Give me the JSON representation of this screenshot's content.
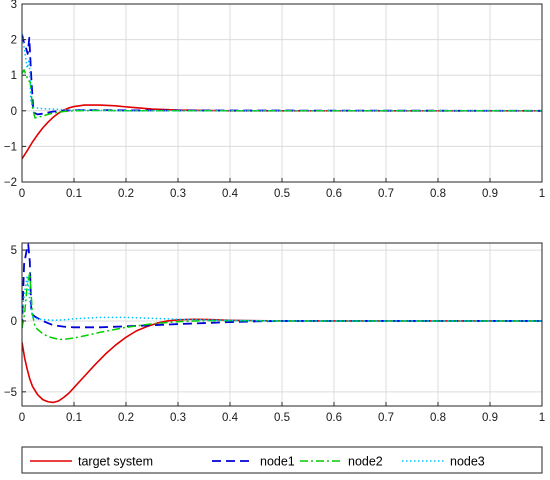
{
  "chart_data": [
    {
      "type": "line",
      "xlim": [
        0,
        1
      ],
      "ylim": [
        -2,
        3
      ],
      "xticks": [
        0,
        0.1,
        0.2,
        0.3,
        0.4,
        0.5,
        0.6,
        0.7,
        0.8,
        0.9,
        1
      ],
      "xtick_labels": [
        "0",
        "0.1",
        "0.2",
        "0.3",
        "0.4",
        "0.5",
        "0.6",
        "0.7",
        "0.8",
        "0.9",
        "1"
      ],
      "yticks": [
        -2,
        -1,
        0,
        1,
        2,
        3
      ],
      "ytick_labels": [
        "−2",
        "−1",
        "0",
        "1",
        "2",
        "3"
      ],
      "grid": true,
      "series": [
        {
          "name": "target system",
          "color": "#e00000",
          "dash": "solid",
          "x": [
            0,
            0.01,
            0.02,
            0.03,
            0.04,
            0.05,
            0.06,
            0.07,
            0.08,
            0.09,
            0.1,
            0.12,
            0.15,
            0.18,
            0.2,
            0.25,
            0.3,
            0.35,
            0.4,
            0.5,
            1
          ],
          "y": [
            -1.35,
            -1.12,
            -0.88,
            -0.67,
            -0.48,
            -0.32,
            -0.18,
            -0.07,
            0.02,
            0.08,
            0.12,
            0.16,
            0.16,
            0.14,
            0.11,
            0.05,
            0.02,
            0.01,
            0,
            0,
            0
          ]
        },
        {
          "name": "node1",
          "color": "#0000d8",
          "dash": "dashed",
          "x": [
            0,
            0.004,
            0.008,
            0.011,
            0.014,
            0.018,
            0.022,
            0.03,
            0.04,
            0.05,
            0.06,
            0.08,
            0.1,
            0.15,
            0.2,
            1
          ],
          "y": [
            2.15,
            1.9,
            1.75,
            1.6,
            2.05,
            0.9,
            -0.05,
            -0.1,
            -0.08,
            -0.05,
            -0.02,
            0,
            0.02,
            0.02,
            0.01,
            0
          ]
        },
        {
          "name": "node2",
          "color": "#00cc00",
          "dash": "dashdot",
          "x": [
            0,
            0.004,
            0.008,
            0.012,
            0.016,
            0.02,
            0.025,
            0.03,
            0.04,
            0.05,
            0.06,
            0.08,
            0.1,
            0.15,
            0.2,
            1
          ],
          "y": [
            1.05,
            1.15,
            1.0,
            0.85,
            0.8,
            0.1,
            -0.2,
            -0.18,
            -0.15,
            -0.1,
            -0.06,
            -0.02,
            0,
            0.01,
            0,
            0
          ]
        },
        {
          "name": "node3",
          "color": "#00bfff",
          "dash": "dotted",
          "x": [
            0,
            0.005,
            0.01,
            0.014,
            0.017,
            0.02,
            0.03,
            0.04,
            0.06,
            0.08,
            0.1,
            0.15,
            0.2,
            1
          ],
          "y": [
            2.15,
            1.7,
            1.2,
            1.45,
            0.3,
            0.1,
            0.08,
            0.06,
            0.05,
            0.03,
            0.02,
            0.01,
            0,
            0
          ]
        }
      ]
    },
    {
      "type": "line",
      "xlim": [
        0,
        1
      ],
      "ylim": [
        -6,
        5.5
      ],
      "xticks": [
        0,
        0.1,
        0.2,
        0.3,
        0.4,
        0.5,
        0.6,
        0.7,
        0.8,
        0.9,
        1
      ],
      "xtick_labels": [
        "0",
        "0.1",
        "0.2",
        "0.3",
        "0.4",
        "0.5",
        "0.6",
        "0.7",
        "0.8",
        "0.9",
        "1"
      ],
      "yticks": [
        -5,
        0,
        5
      ],
      "ytick_labels": [
        "−5",
        "0",
        "5"
      ],
      "grid": true,
      "series": [
        {
          "name": "target system",
          "color": "#e00000",
          "dash": "solid",
          "x": [
            0,
            0.005,
            0.01,
            0.015,
            0.02,
            0.03,
            0.04,
            0.05,
            0.06,
            0.07,
            0.08,
            0.09,
            0.1,
            0.12,
            0.14,
            0.16,
            0.18,
            0.2,
            0.22,
            0.24,
            0.26,
            0.28,
            0.3,
            0.33,
            0.36,
            0.4,
            0.45,
            0.5,
            1
          ],
          "y": [
            -1.5,
            -2.6,
            -3.4,
            -4.1,
            -4.6,
            -5.2,
            -5.55,
            -5.7,
            -5.75,
            -5.65,
            -5.4,
            -5.1,
            -4.7,
            -3.9,
            -3.1,
            -2.35,
            -1.7,
            -1.15,
            -0.7,
            -0.4,
            -0.15,
            0,
            0.08,
            0.12,
            0.1,
            0.05,
            0.02,
            0,
            0
          ]
        },
        {
          "name": "node1",
          "color": "#0000d8",
          "dash": "dashed",
          "x": [
            0,
            0.004,
            0.008,
            0.012,
            0.015,
            0.018,
            0.02,
            0.025,
            0.03,
            0.04,
            0.06,
            0.08,
            0.1,
            0.15,
            0.2,
            0.25,
            0.3,
            0.35,
            0.4,
            0.45,
            0.5,
            1
          ],
          "y": [
            -0.5,
            4.0,
            4.8,
            5.4,
            4.2,
            0.6,
            0.45,
            0.3,
            0.2,
            0,
            -0.3,
            -0.4,
            -0.45,
            -0.45,
            -0.38,
            -0.3,
            -0.22,
            -0.15,
            -0.08,
            -0.03,
            0,
            0
          ]
        },
        {
          "name": "node2",
          "color": "#00cc00",
          "dash": "dashdot",
          "x": [
            0,
            0.005,
            0.01,
            0.015,
            0.02,
            0.025,
            0.03,
            0.04,
            0.05,
            0.06,
            0.07,
            0.08,
            0.1,
            0.12,
            0.15,
            0.2,
            0.25,
            0.3,
            0.35,
            0.4,
            0.5,
            1
          ],
          "y": [
            -0.5,
            0.5,
            2.5,
            3.4,
            0.5,
            -0.4,
            -0.6,
            -0.9,
            -1.1,
            -1.2,
            -1.3,
            -1.3,
            -1.2,
            -1.05,
            -0.8,
            -0.45,
            -0.2,
            -0.05,
            0.02,
            0.02,
            0,
            0
          ]
        },
        {
          "name": "node3",
          "color": "#00bfff",
          "dash": "dotted",
          "x": [
            0,
            0.005,
            0.01,
            0.015,
            0.02,
            0.03,
            0.04,
            0.06,
            0.08,
            0.1,
            0.15,
            0.2,
            0.3,
            0.4,
            0.5,
            1
          ],
          "y": [
            0.5,
            2.0,
            3.2,
            1.4,
            0.3,
            0.15,
            0.1,
            0.05,
            0.08,
            0.15,
            0.25,
            0.25,
            0.12,
            0.04,
            0,
            0
          ]
        }
      ]
    }
  ],
  "legend": {
    "placement": "bottom",
    "entries": [
      {
        "label": "target system",
        "color": "#e00000",
        "dash": "solid"
      },
      {
        "label": "node1",
        "color": "#0000d8",
        "dash": "dashed"
      },
      {
        "label": "node2",
        "color": "#00cc00",
        "dash": "dashdot"
      },
      {
        "label": "node3",
        "color": "#00bfff",
        "dash": "dotted"
      }
    ]
  }
}
